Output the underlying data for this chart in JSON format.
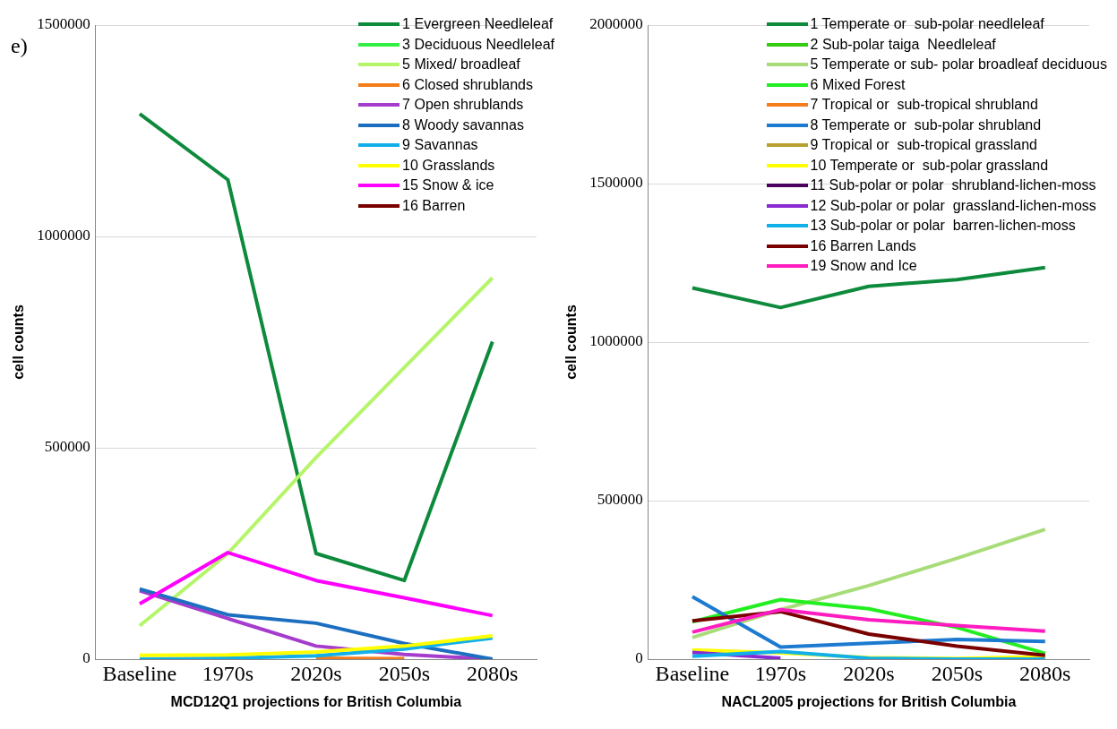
{
  "chart_data": [
    {
      "type": "line",
      "annotations": [
        "e)"
      ],
      "xlabel": "MCD12Q1 projections for British Columbia",
      "ylabel": "cell counts",
      "categories": [
        "Baseline",
        "1970s",
        "2020s",
        "2050s",
        "2080s"
      ],
      "ylim": [
        0,
        1500000
      ],
      "yticks": [
        0,
        500000,
        1000000,
        1500000
      ],
      "grid": "y",
      "legend": "top right",
      "marker": "none",
      "series": [
        {
          "name": "1 Evergreen Needleleaf",
          "color": "#0e8a3c",
          "values": [
            1290000,
            1134000,
            250000,
            186000,
            751000
          ]
        },
        {
          "name": "3 Deciduous Needleleaf",
          "color": "#33ee44",
          "values": [
            null,
            null,
            null,
            null,
            null
          ]
        },
        {
          "name": "5 Mixed/ broadleaf",
          "color": "#b5f56a",
          "values": [
            79000,
            250000,
            477000,
            690000,
            902000
          ]
        },
        {
          "name": "6 Closed shrublands",
          "color": "#f47c1a",
          "values": [
            null,
            null,
            2000,
            1000,
            null
          ]
        },
        {
          "name": "7 Open shrublands",
          "color": "#a53ccc",
          "values": [
            162000,
            96000,
            31000,
            11000,
            0
          ]
        },
        {
          "name": "8 Woody savannas",
          "color": "#1c6fc0",
          "values": [
            166000,
            105000,
            85000,
            37000,
            0
          ]
        },
        {
          "name": "9 Savannas",
          "color": "#12b0ea",
          "values": [
            0,
            2000,
            8000,
            24000,
            50000
          ]
        },
        {
          "name": "10 Grasslands",
          "color": "#ffff00",
          "values": [
            9000,
            10000,
            17000,
            31000,
            55000
          ]
        },
        {
          "name": "15 Snow & ice",
          "color": "#ff00ff",
          "values": [
            131000,
            252000,
            186000,
            145000,
            103000
          ]
        },
        {
          "name": "16 Barren",
          "color": "#7a0000",
          "values": [
            null,
            null,
            null,
            null,
            null
          ]
        }
      ]
    },
    {
      "type": "line",
      "xlabel": "NACL2005 projections for British Columbia",
      "ylabel": "cell counts",
      "categories": [
        "Baseline",
        "1970s",
        "2020s",
        "2050s",
        "2080s"
      ],
      "ylim": [
        0,
        2000000
      ],
      "yticks": [
        0,
        500000,
        1000000,
        1500000,
        2000000
      ],
      "grid": "y",
      "legend": "top right",
      "marker": "none",
      "series": [
        {
          "name": "1 Temperate or  sub-polar needleleaf",
          "color": "#0e8a3c",
          "values": [
            1171000,
            1109000,
            1176000,
            1197000,
            1235000
          ]
        },
        {
          "name": "2 Sub-polar taiga  Needleleaf",
          "color": "#33cc11",
          "values": [
            null,
            null,
            null,
            null,
            null
          ]
        },
        {
          "name": "5 Temperate or sub- polar broadleaf deciduous",
          "color": "#a8dc78",
          "values": [
            68000,
            156000,
            232000,
            318000,
            409000
          ]
        },
        {
          "name": "6 Mixed Forest",
          "color": "#22ee22",
          "values": [
            118000,
            188000,
            159000,
            100000,
            18000
          ]
        },
        {
          "name": "7 Tropical or  sub-tropical shrubland",
          "color": "#f47c1a",
          "values": [
            null,
            null,
            null,
            null,
            null
          ]
        },
        {
          "name": "8 Temperate or  sub-polar shrubland",
          "color": "#1c7ad0",
          "values": [
            197000,
            38000,
            50000,
            62000,
            56000
          ]
        },
        {
          "name": "9 Tropical or  sub-tropical grassland",
          "color": "#b8a030",
          "values": [
            null,
            null,
            null,
            null,
            null
          ]
        },
        {
          "name": "10 Temperate or  sub-polar grassland",
          "color": "#ffff00",
          "values": [
            29000,
            20000,
            5000,
            2000,
            8000
          ]
        },
        {
          "name": "11 Sub-polar or polar  shrubland-lichen-moss",
          "color": "#4b0060",
          "values": [
            null,
            null,
            null,
            null,
            null
          ]
        },
        {
          "name": "12 Sub-polar or polar  grassland-lichen-moss",
          "color": "#8a2ad0",
          "values": [
            21000,
            3000,
            null,
            null,
            null
          ]
        },
        {
          "name": "13 Sub-polar or polar  barren-lichen-moss",
          "color": "#12b0ea",
          "values": [
            9000,
            24000,
            3000,
            0,
            0
          ]
        },
        {
          "name": "16 Barren Lands",
          "color": "#7a0000",
          "values": [
            121000,
            150000,
            79000,
            41000,
            12000
          ]
        },
        {
          "name": "19 Snow and Ice",
          "color": "#ff1cc0",
          "values": [
            85000,
            156000,
            124000,
            106000,
            88000
          ]
        }
      ]
    }
  ]
}
